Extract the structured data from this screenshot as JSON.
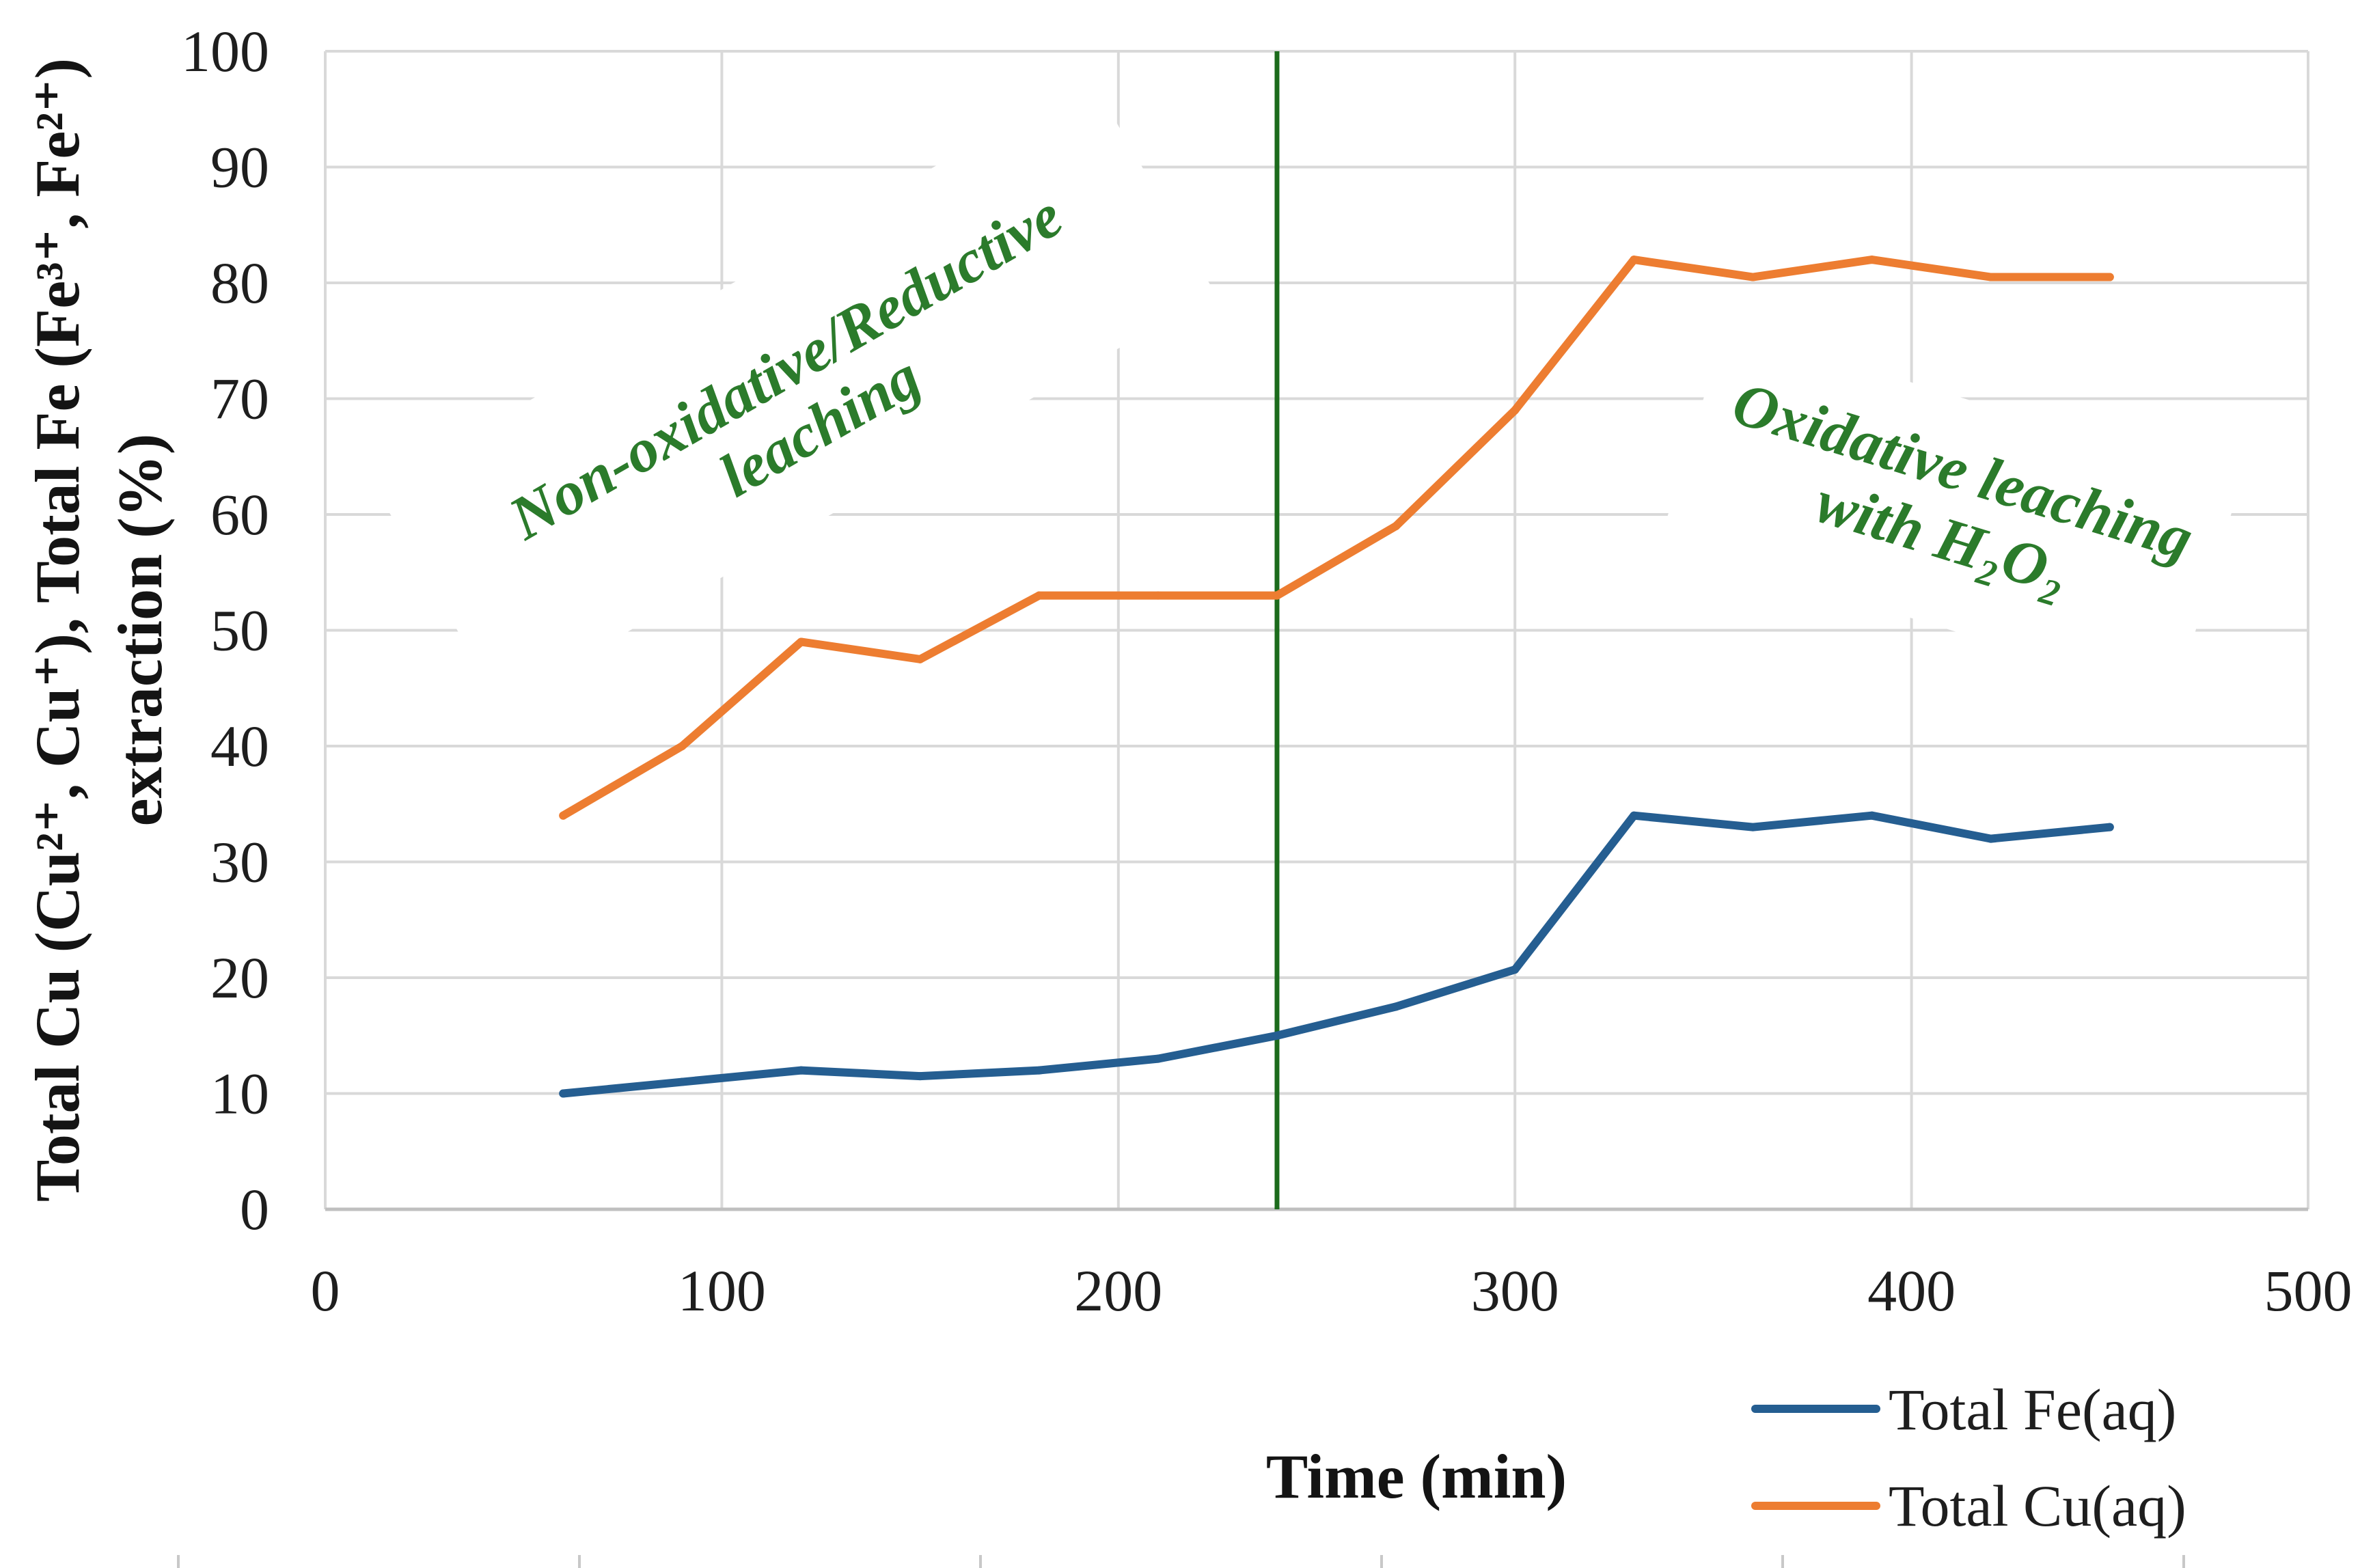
{
  "chart_data": {
    "type": "line",
    "xlabel": "Time (min)",
    "ylabel": [
      "Total Cu (Cu²⁺, Cu⁺), Total Fe (Fe³⁺, Fe²⁺)",
      "extraction (%)"
    ],
    "xlim": [
      0,
      500
    ],
    "ylim": [
      0,
      100
    ],
    "xticks": [
      0,
      100,
      200,
      300,
      400,
      500
    ],
    "yticks": [
      0,
      10,
      20,
      30,
      40,
      50,
      60,
      70,
      80,
      90,
      100
    ],
    "grid": true,
    "grid_color": "#d9d9d9",
    "axis_color": "#bfbfbf",
    "legend": "bottom-right",
    "x": [
      60,
      90,
      120,
      150,
      180,
      210,
      240,
      270,
      300,
      330,
      360,
      390,
      420,
      450
    ],
    "series": [
      {
        "name": "Total Fe(aq)",
        "color": "#255e91",
        "values": [
          10,
          11,
          12,
          11.5,
          12,
          13,
          15,
          17.5,
          20.7,
          34,
          33,
          34,
          32,
          33
        ]
      },
      {
        "name": "Total Cu(aq)",
        "color": "#ed7d31",
        "values": [
          34,
          40,
          49,
          47.5,
          53,
          53,
          53,
          59,
          69,
          82,
          80.5,
          82,
          80.5,
          80.5
        ]
      }
    ],
    "reference_line": {
      "x": 240,
      "color": "#1c6b1c"
    },
    "annotations": [
      {
        "lines": [
          "Non-oxidative/Reductive",
          "leaching"
        ],
        "color": "#2b7b2b"
      },
      {
        "lines": [
          "Oxidative leaching",
          "with H₂O₂"
        ],
        "color": "#2b7b2b"
      }
    ]
  }
}
